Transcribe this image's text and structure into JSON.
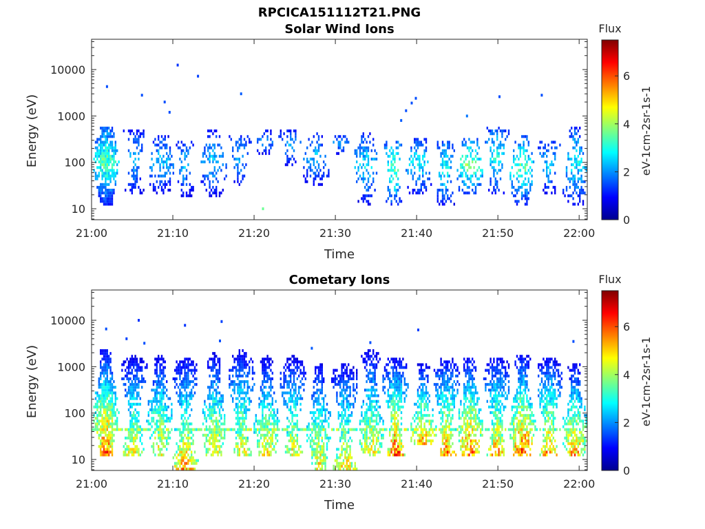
{
  "figure": {
    "title": "RPCICA151112T21.PNG"
  },
  "chart_data": [
    {
      "type": "heatmap",
      "title": "Solar Wind Ions",
      "xlabel": "Time",
      "ylabel": "Energy (eV)",
      "y_scale": "log",
      "x_ticks": [
        "21:00",
        "21:10",
        "21:20",
        "21:30",
        "21:40",
        "21:50",
        "22:00"
      ],
      "y_ticks": [
        "10",
        "100",
        "1000",
        "10000"
      ],
      "colorbar": {
        "label": "Flux",
        "unit": "eV-1cm-2sr-1s-1",
        "ticks": [
          "0",
          "2",
          "4",
          "6"
        ],
        "range": [
          0,
          7.5
        ],
        "colormap": "jet"
      },
      "bursts": [
        {
          "t": 1.8,
          "emin": 12,
          "emax": 600,
          "peak": 3.6,
          "density": 0.85
        },
        {
          "t": 5.3,
          "emin": 20,
          "emax": 500,
          "peak": 2.6,
          "density": 0.45
        },
        {
          "t": 8.5,
          "emin": 20,
          "emax": 400,
          "peak": 2.6,
          "density": 0.45
        },
        {
          "t": 11.5,
          "emin": 18,
          "emax": 300,
          "peak": 2.6,
          "density": 0.45
        },
        {
          "t": 15.0,
          "emin": 18,
          "emax": 500,
          "peak": 2.6,
          "density": 0.4
        },
        {
          "t": 18.3,
          "emin": 30,
          "emax": 400,
          "peak": 2.6,
          "density": 0.4
        },
        {
          "t": 21.3,
          "emin": 150,
          "emax": 500,
          "peak": 2.4,
          "density": 0.35
        },
        {
          "t": 24.5,
          "emin": 80,
          "emax": 500,
          "peak": 2.4,
          "density": 0.4
        },
        {
          "t": 27.6,
          "emin": 30,
          "emax": 450,
          "peak": 2.5,
          "density": 0.4
        },
        {
          "t": 30.5,
          "emin": 150,
          "emax": 400,
          "peak": 2.4,
          "density": 0.3
        },
        {
          "t": 33.7,
          "emin": 12,
          "emax": 450,
          "peak": 2.8,
          "density": 0.4
        },
        {
          "t": 37.2,
          "emin": 12,
          "emax": 300,
          "peak": 3.8,
          "density": 0.45
        },
        {
          "t": 40.3,
          "emin": 20,
          "emax": 350,
          "peak": 3.0,
          "density": 0.4
        },
        {
          "t": 43.5,
          "emin": 12,
          "emax": 300,
          "peak": 3.2,
          "density": 0.45
        },
        {
          "t": 46.6,
          "emin": 20,
          "emax": 350,
          "peak": 4.0,
          "density": 0.45
        },
        {
          "t": 49.8,
          "emin": 20,
          "emax": 600,
          "peak": 3.2,
          "density": 0.45
        },
        {
          "t": 53.0,
          "emin": 12,
          "emax": 400,
          "peak": 3.6,
          "density": 0.45
        },
        {
          "t": 56.3,
          "emin": 20,
          "emax": 300,
          "peak": 2.8,
          "density": 0.4
        },
        {
          "t": 59.5,
          "emin": 12,
          "emax": 600,
          "peak": 3.0,
          "density": 0.45
        }
      ],
      "isolated_points": [
        {
          "t": 1.9,
          "e": 4300,
          "v": 1.5
        },
        {
          "t": 6.2,
          "e": 2800,
          "v": 1.5
        },
        {
          "t": 9.0,
          "e": 2000,
          "v": 1.5
        },
        {
          "t": 9.6,
          "e": 1200,
          "v": 1.5
        },
        {
          "t": 10.6,
          "e": 12500,
          "v": 1.3
        },
        {
          "t": 13.1,
          "e": 7200,
          "v": 1.4
        },
        {
          "t": 18.4,
          "e": 3000,
          "v": 1.6
        },
        {
          "t": 21.1,
          "e": 10,
          "v": 3.6
        },
        {
          "t": 38.1,
          "e": 800,
          "v": 1.6
        },
        {
          "t": 38.7,
          "e": 1300,
          "v": 1.5
        },
        {
          "t": 39.4,
          "e": 1900,
          "v": 1.5
        },
        {
          "t": 39.9,
          "e": 2400,
          "v": 1.5
        },
        {
          "t": 46.2,
          "e": 1000,
          "v": 1.8
        },
        {
          "t": 50.2,
          "e": 2600,
          "v": 1.5
        },
        {
          "t": 55.4,
          "e": 2800,
          "v": 1.5
        }
      ]
    },
    {
      "type": "heatmap",
      "title": "Cometary Ions",
      "xlabel": "Time",
      "ylabel": "Energy (eV)",
      "y_scale": "log",
      "x_ticks": [
        "21:00",
        "21:10",
        "21:20",
        "21:30",
        "21:40",
        "21:50",
        "22:00"
      ],
      "y_ticks": [
        "10",
        "100",
        "1000",
        "10000"
      ],
      "colorbar": {
        "label": "Flux",
        "unit": "eV-1cm-2sr-1s-1",
        "ticks": [
          "0",
          "2",
          "4",
          "6"
        ],
        "range": [
          0,
          7.5
        ],
        "colormap": "jet"
      },
      "bursts": [
        {
          "t": 1.8,
          "emin": 12,
          "emax": 2500,
          "peak": 6.3,
          "density": 0.9
        },
        {
          "t": 5.2,
          "emin": 12,
          "emax": 1800,
          "peak": 5.0,
          "density": 0.75
        },
        {
          "t": 8.4,
          "emin": 12,
          "emax": 2000,
          "peak": 5.0,
          "density": 0.75
        },
        {
          "t": 11.6,
          "emin": 6,
          "emax": 1600,
          "peak": 5.6,
          "density": 0.75
        },
        {
          "t": 15.1,
          "emin": 12,
          "emax": 2000,
          "peak": 5.2,
          "density": 0.75
        },
        {
          "t": 18.5,
          "emin": 12,
          "emax": 2500,
          "peak": 5.0,
          "density": 0.7
        },
        {
          "t": 21.6,
          "emin": 12,
          "emax": 1800,
          "peak": 5.0,
          "density": 0.7
        },
        {
          "t": 24.8,
          "emin": 12,
          "emax": 1800,
          "peak": 5.0,
          "density": 0.7
        },
        {
          "t": 28.0,
          "emin": 6,
          "emax": 1200,
          "peak": 5.2,
          "density": 0.7
        },
        {
          "t": 31.2,
          "emin": 6,
          "emax": 1200,
          "peak": 5.2,
          "density": 0.7
        },
        {
          "t": 34.4,
          "emin": 12,
          "emax": 2500,
          "peak": 5.0,
          "density": 0.7
        },
        {
          "t": 37.4,
          "emin": 12,
          "emax": 1500,
          "peak": 6.3,
          "density": 0.8
        },
        {
          "t": 40.8,
          "emin": 20,
          "emax": 1200,
          "peak": 5.6,
          "density": 0.7
        },
        {
          "t": 43.7,
          "emin": 12,
          "emax": 1500,
          "peak": 6.0,
          "density": 0.75
        },
        {
          "t": 46.6,
          "emin": 12,
          "emax": 1600,
          "peak": 6.2,
          "density": 0.75
        },
        {
          "t": 49.9,
          "emin": 12,
          "emax": 1600,
          "peak": 5.6,
          "density": 0.75
        },
        {
          "t": 53.0,
          "emin": 12,
          "emax": 1800,
          "peak": 6.4,
          "density": 0.75
        },
        {
          "t": 56.3,
          "emin": 12,
          "emax": 1600,
          "peak": 5.8,
          "density": 0.75
        },
        {
          "t": 59.5,
          "emin": 12,
          "emax": 1200,
          "peak": 5.6,
          "density": 0.75
        }
      ],
      "band": {
        "e": 42,
        "v": 4.5
      },
      "isolated_points": [
        {
          "t": 1.8,
          "e": 6500,
          "v": 1.5
        },
        {
          "t": 4.3,
          "e": 4000,
          "v": 1.4
        },
        {
          "t": 5.8,
          "e": 10000,
          "v": 1.3
        },
        {
          "t": 6.5,
          "e": 3200,
          "v": 1.5
        },
        {
          "t": 11.5,
          "e": 7800,
          "v": 1.3
        },
        {
          "t": 16.0,
          "e": 9400,
          "v": 1.4
        },
        {
          "t": 15.8,
          "e": 3600,
          "v": 1.5
        },
        {
          "t": 27.1,
          "e": 2500,
          "v": 1.6
        },
        {
          "t": 34.3,
          "e": 3300,
          "v": 1.5
        },
        {
          "t": 40.2,
          "e": 6200,
          "v": 1.4
        },
        {
          "t": 59.3,
          "e": 3500,
          "v": 1.5
        }
      ]
    }
  ]
}
